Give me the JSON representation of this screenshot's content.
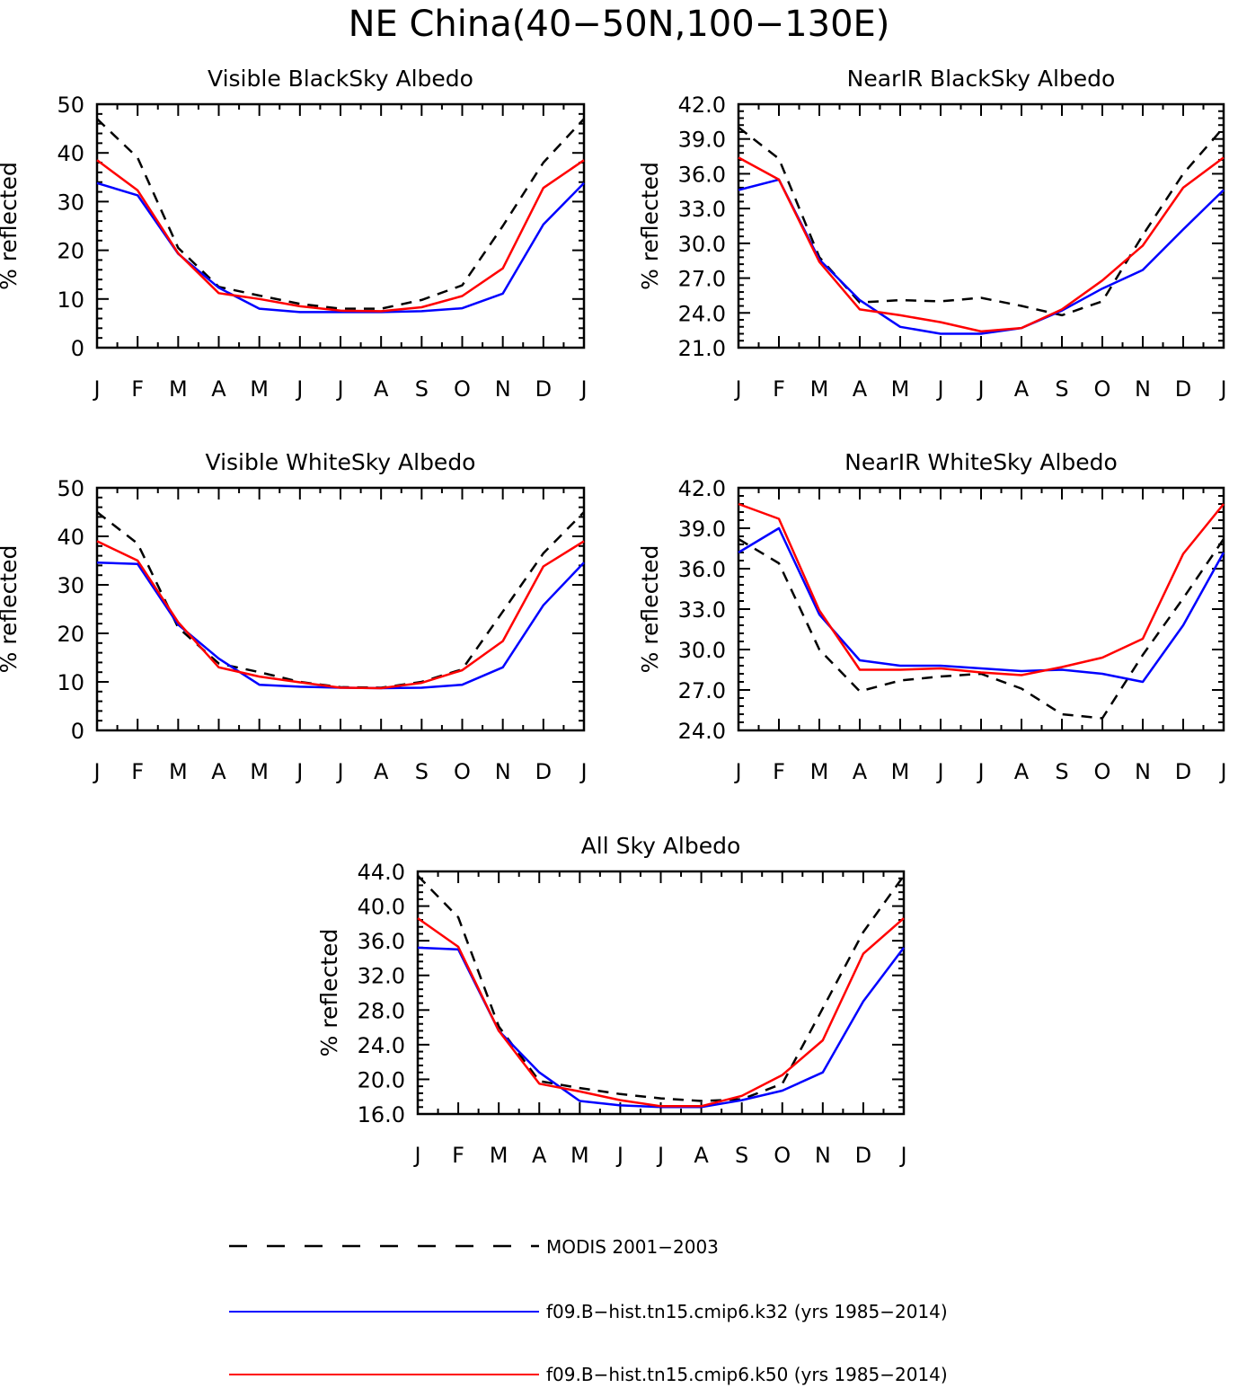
{
  "title": "NE China(40−50N,100−130E)",
  "legend": [
    {
      "name": "MODIS 2001−2003",
      "color": "#000000",
      "dash": true
    },
    {
      "name": "f09.B−hist.tn15.cmip6.k32 (yrs 1985−2014)",
      "color": "#0000ff",
      "dash": false
    },
    {
      "name": "f09.B−hist.tn15.cmip6.k50 (yrs 1985−2014)",
      "color": "#ff0000",
      "dash": false
    }
  ],
  "chart_data": [
    {
      "type": "line",
      "title": "Visible BlackSky Albedo",
      "ylabel": "% reflected",
      "categories": [
        "J",
        "F",
        "M",
        "A",
        "M",
        "J",
        "J",
        "A",
        "S",
        "O",
        "N",
        "D",
        "J"
      ],
      "ylim": [
        0,
        50
      ],
      "yticks": [
        "0",
        "10",
        "20",
        "30",
        "40",
        "50"
      ],
      "series": [
        {
          "name": "MODIS 2001−2003",
          "values": [
            47.0,
            39.0,
            20.5,
            12.5,
            10.7,
            9.0,
            8.0,
            8.0,
            9.8,
            12.8,
            25.0,
            38.0,
            47.0
          ]
        },
        {
          "name": "f09.B−hist.tn15.cmip6.k32 (yrs 1985−2014)",
          "values": [
            33.8,
            31.3,
            19.3,
            12.3,
            8.0,
            7.3,
            7.3,
            7.3,
            7.5,
            8.1,
            11.1,
            25.3,
            33.8
          ]
        },
        {
          "name": "f09.B−hist.tn15.cmip6.k50 (yrs 1985−2014)",
          "values": [
            38.5,
            32.3,
            19.4,
            11.2,
            10.0,
            8.5,
            7.6,
            7.5,
            8.3,
            10.6,
            16.3,
            32.8,
            38.5
          ]
        }
      ]
    },
    {
      "type": "line",
      "title": "NearIR BlackSky Albedo",
      "ylabel": "% reflected",
      "categories": [
        "J",
        "F",
        "M",
        "A",
        "M",
        "J",
        "J",
        "A",
        "S",
        "O",
        "N",
        "D",
        "J"
      ],
      "ylim": [
        21.0,
        42.0
      ],
      "yticks": [
        "21.0",
        "24.0",
        "27.0",
        "30.0",
        "33.0",
        "36.0",
        "39.0",
        "42.0"
      ],
      "series": [
        {
          "name": "MODIS 2001−2003",
          "values": [
            40.0,
            37.3,
            28.8,
            24.9,
            25.1,
            25.0,
            25.3,
            24.6,
            23.8,
            25.0,
            30.7,
            36.0,
            40.0
          ]
        },
        {
          "name": "f09.B−hist.tn15.cmip6.k32 (yrs 1985−2014)",
          "values": [
            34.6,
            35.5,
            28.6,
            25.1,
            22.8,
            22.2,
            22.2,
            22.7,
            24.2,
            26.1,
            27.7,
            31.2,
            34.6
          ]
        },
        {
          "name": "f09.B−hist.tn15.cmip6.k50 (yrs 1985−2014)",
          "values": [
            37.4,
            35.5,
            28.4,
            24.3,
            23.8,
            23.2,
            22.4,
            22.7,
            24.3,
            26.8,
            29.8,
            34.8,
            37.4
          ]
        }
      ]
    },
    {
      "type": "line",
      "title": "Visible WhiteSky Albedo",
      "ylabel": "% reflected",
      "categories": [
        "J",
        "F",
        "M",
        "A",
        "M",
        "J",
        "J",
        "A",
        "S",
        "O",
        "N",
        "D",
        "J"
      ],
      "ylim": [
        0,
        50
      ],
      "yticks": [
        "0",
        "10",
        "20",
        "30",
        "40",
        "50"
      ],
      "series": [
        {
          "name": "MODIS 2001−2003",
          "values": [
            45.0,
            38.5,
            21.2,
            13.8,
            12.0,
            10.0,
            8.9,
            8.8,
            10.0,
            12.6,
            24.5,
            36.5,
            45.0
          ]
        },
        {
          "name": "f09.B−hist.tn15.cmip6.k32 (yrs 1985−2014)",
          "values": [
            34.6,
            34.3,
            21.8,
            14.8,
            9.4,
            9.0,
            8.8,
            8.7,
            8.8,
            9.4,
            13.0,
            25.8,
            34.6
          ]
        },
        {
          "name": "f09.B−hist.tn15.cmip6.k50 (yrs 1985−2014)",
          "values": [
            39.0,
            35.0,
            22.3,
            13.0,
            11.1,
            9.9,
            8.8,
            8.7,
            9.8,
            12.4,
            18.4,
            33.8,
            39.0
          ]
        }
      ]
    },
    {
      "type": "line",
      "title": "NearIR WhiteSky Albedo",
      "ylabel": "% reflected",
      "categories": [
        "J",
        "F",
        "M",
        "A",
        "M",
        "J",
        "J",
        "A",
        "S",
        "O",
        "N",
        "D",
        "J"
      ],
      "ylim": [
        24.0,
        42.0
      ],
      "yticks": [
        "24.0",
        "27.0",
        "30.0",
        "33.0",
        "36.0",
        "39.0",
        "42.0"
      ],
      "series": [
        {
          "name": "MODIS 2001−2003",
          "values": [
            38.2,
            36.4,
            30.0,
            26.9,
            27.7,
            28.0,
            28.2,
            27.1,
            25.2,
            24.9,
            29.6,
            33.8,
            38.2
          ]
        },
        {
          "name": "f09.B−hist.tn15.cmip6.k32 (yrs 1985−2014)",
          "values": [
            37.2,
            39.0,
            32.6,
            29.2,
            28.8,
            28.8,
            28.6,
            28.4,
            28.5,
            28.2,
            27.6,
            31.8,
            37.2
          ]
        },
        {
          "name": "f09.B−hist.tn15.cmip6.k50 (yrs 1985−2014)",
          "values": [
            40.8,
            39.7,
            32.9,
            28.5,
            28.5,
            28.6,
            28.3,
            28.1,
            28.7,
            29.4,
            30.8,
            37.1,
            40.8
          ]
        }
      ]
    },
    {
      "type": "line",
      "title": "All Sky Albedo",
      "ylabel": "% reflected",
      "categories": [
        "J",
        "F",
        "M",
        "A",
        "M",
        "J",
        "J",
        "A",
        "S",
        "O",
        "N",
        "D",
        "J"
      ],
      "ylim": [
        16.0,
        44.0
      ],
      "yticks": [
        "16.0",
        "20.0",
        "24.0",
        "28.0",
        "32.0",
        "36.0",
        "40.0",
        "44.0"
      ],
      "series": [
        {
          "name": "MODIS 2001−2003",
          "values": [
            43.5,
            38.7,
            26.1,
            19.8,
            19.0,
            18.3,
            17.8,
            17.5,
            17.7,
            19.5,
            28.2,
            37.0,
            43.5
          ]
        },
        {
          "name": "f09.B−hist.tn15.cmip6.k32 (yrs 1985−2014)",
          "values": [
            35.2,
            35.0,
            25.6,
            20.8,
            17.5,
            17.0,
            16.8,
            16.8,
            17.6,
            18.7,
            20.8,
            29.0,
            35.2
          ]
        },
        {
          "name": "f09.B−hist.tn15.cmip6.k50 (yrs 1985−2014)",
          "values": [
            38.6,
            35.3,
            25.6,
            19.5,
            18.6,
            17.6,
            16.9,
            16.9,
            18.1,
            20.5,
            24.5,
            34.5,
            38.6
          ]
        }
      ]
    }
  ]
}
